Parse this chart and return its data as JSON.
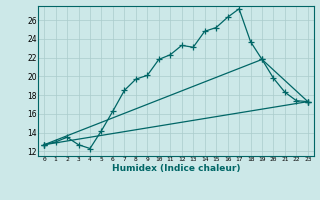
{
  "xlabel": "Humidex (Indice chaleur)",
  "bg_color": "#cce8e8",
  "line_color": "#006666",
  "grid_color": "#aacccc",
  "xlim": [
    -0.5,
    23.5
  ],
  "ylim": [
    11.5,
    27.5
  ],
  "xticks": [
    0,
    1,
    2,
    3,
    4,
    5,
    6,
    7,
    8,
    9,
    10,
    11,
    12,
    13,
    14,
    15,
    16,
    17,
    18,
    19,
    20,
    21,
    22,
    23
  ],
  "yticks": [
    12,
    14,
    16,
    18,
    20,
    22,
    24,
    26
  ],
  "line1_x": [
    0,
    1,
    2,
    3,
    4,
    5,
    6,
    7,
    8,
    9,
    10,
    11,
    12,
    13,
    14,
    15,
    16,
    17,
    18,
    19,
    20,
    21,
    22,
    23
  ],
  "line1_y": [
    12.7,
    13.0,
    13.5,
    12.7,
    12.3,
    14.2,
    16.3,
    18.5,
    19.7,
    20.1,
    21.8,
    22.3,
    23.3,
    23.1,
    24.8,
    25.2,
    26.3,
    27.2,
    23.7,
    21.8,
    19.8,
    18.3,
    17.4,
    17.3
  ],
  "line2_x": [
    0,
    19,
    23
  ],
  "line2_y": [
    12.7,
    21.8,
    17.3
  ],
  "line3_x": [
    0,
    23
  ],
  "line3_y": [
    12.7,
    17.3
  ]
}
